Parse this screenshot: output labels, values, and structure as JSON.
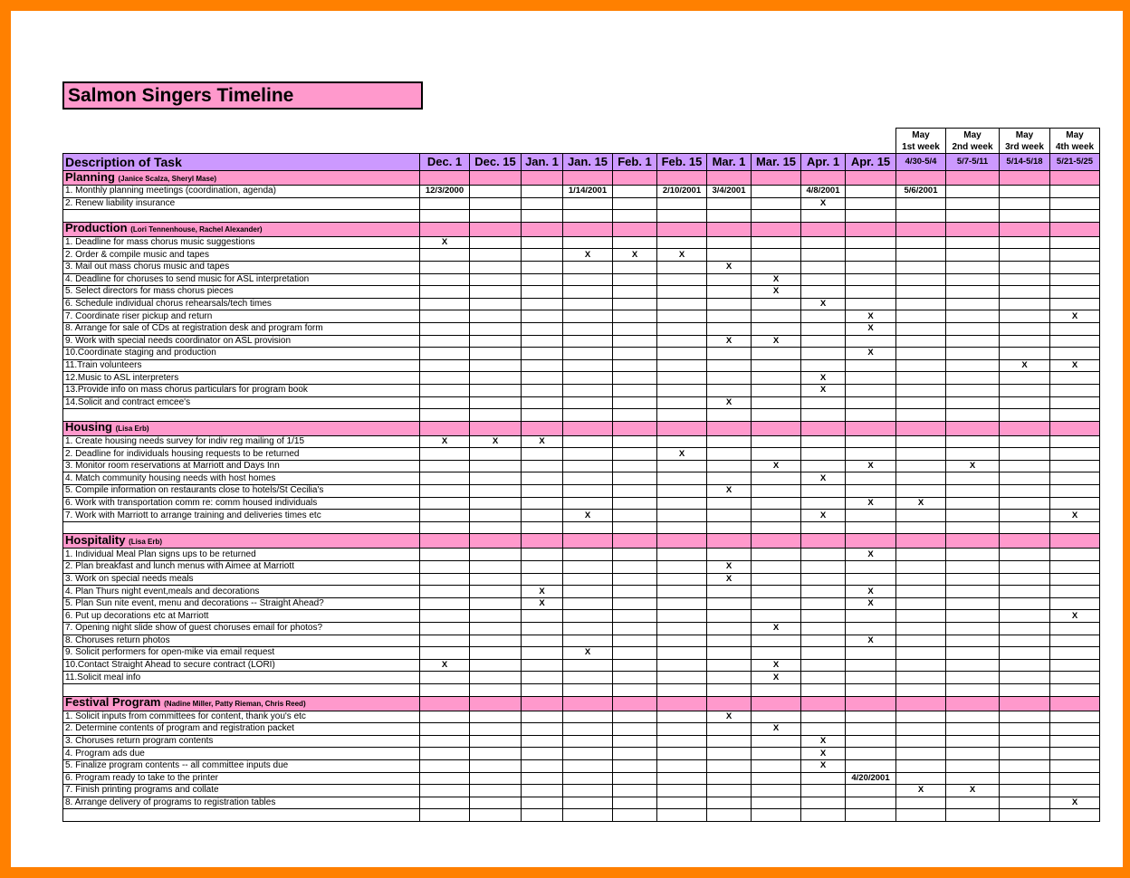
{
  "title": "Salmon Singers Timeline",
  "description_header": "Description of Task",
  "columns": [
    "Dec. 1",
    "Dec. 15",
    "Jan. 1",
    "Jan. 15",
    "Feb. 1",
    "Feb. 15",
    "Mar. 1",
    "Mar. 15",
    "Apr. 1",
    "Apr. 15",
    "4/30-5/4",
    "5/7-5/11",
    "5/14-5/18",
    "5/21-5/25"
  ],
  "may_headers": [
    [
      "May",
      "1st week"
    ],
    [
      "May",
      "2nd week"
    ],
    [
      "May",
      "3rd week"
    ],
    [
      "May",
      "4th week"
    ]
  ],
  "sections": [
    {
      "title": "Planning",
      "people": "(Janice Scalza, Sheryl Mase)",
      "tasks": [
        {
          "label": "1. Monthly planning meetings (coordination, agenda)",
          "cells": [
            "12/3/2000",
            null,
            null,
            "1/14/2001",
            null,
            "2/10/2001",
            "3/4/2001",
            null,
            "4/8/2001",
            null,
            "5/6/2001",
            null,
            null,
            null
          ]
        },
        {
          "label": "2. Renew liability insurance",
          "cells": [
            null,
            null,
            null,
            null,
            null,
            null,
            null,
            null,
            "X",
            null,
            null,
            null,
            null,
            null
          ]
        }
      ]
    },
    {
      "title": "Production",
      "people": "(Lori Tennenhouse, Rachel Alexander)",
      "tasks": [
        {
          "label": "1. Deadline for mass chorus music suggestions",
          "cells": [
            "X",
            null,
            null,
            null,
            null,
            null,
            null,
            null,
            null,
            null,
            null,
            null,
            null,
            null
          ]
        },
        {
          "label": "2. Order & compile music and tapes",
          "cells": [
            null,
            null,
            null,
            "X",
            "X",
            "X",
            null,
            null,
            null,
            null,
            null,
            null,
            null,
            null
          ]
        },
        {
          "label": "3. Mail out mass chorus music and tapes",
          "cells": [
            null,
            null,
            null,
            null,
            null,
            null,
            "X",
            null,
            null,
            null,
            null,
            null,
            null,
            null
          ]
        },
        {
          "label": "4. Deadline for choruses to send music for ASL interpretation",
          "cells": [
            null,
            null,
            null,
            null,
            null,
            null,
            null,
            "X",
            null,
            null,
            null,
            null,
            null,
            null
          ]
        },
        {
          "label": "5. Select directors for mass chorus pieces",
          "cells": [
            null,
            null,
            null,
            null,
            null,
            null,
            null,
            "X",
            null,
            null,
            null,
            null,
            null,
            null
          ]
        },
        {
          "label": "6. Schedule individual chorus rehearsals/tech times",
          "cells": [
            null,
            null,
            null,
            null,
            null,
            null,
            null,
            null,
            "X",
            null,
            null,
            null,
            null,
            null
          ]
        },
        {
          "label": "7. Coordinate riser pickup and return",
          "cells": [
            null,
            null,
            null,
            null,
            null,
            null,
            null,
            null,
            null,
            "X",
            null,
            null,
            null,
            "X"
          ]
        },
        {
          "label": "8. Arrange for sale of CDs at registration desk and program form",
          "cells": [
            null,
            null,
            null,
            null,
            null,
            null,
            null,
            null,
            null,
            "X",
            null,
            null,
            null,
            null
          ]
        },
        {
          "label": "9. Work with special needs coordinator on ASL provision",
          "cells": [
            null,
            null,
            null,
            null,
            null,
            null,
            "X",
            "X",
            null,
            null,
            null,
            null,
            null,
            null
          ]
        },
        {
          "label": "10.Coordinate staging and production",
          "cells": [
            null,
            null,
            null,
            null,
            null,
            null,
            null,
            null,
            null,
            "X",
            null,
            null,
            null,
            null
          ]
        },
        {
          "label": "11.Train volunteers",
          "cells": [
            null,
            null,
            null,
            null,
            null,
            null,
            null,
            null,
            null,
            null,
            null,
            null,
            "X",
            "X"
          ]
        },
        {
          "label": "12.Music to ASL interpreters",
          "cells": [
            null,
            null,
            null,
            null,
            null,
            null,
            null,
            null,
            "X",
            null,
            null,
            null,
            null,
            null
          ]
        },
        {
          "label": "13.Provide info on mass chorus particulars for program book",
          "cells": [
            null,
            null,
            null,
            null,
            null,
            null,
            null,
            null,
            "X",
            null,
            null,
            null,
            null,
            null
          ]
        },
        {
          "label": "14.Solicit and contract emcee's",
          "cells": [
            null,
            null,
            null,
            null,
            null,
            null,
            "X",
            null,
            null,
            null,
            null,
            null,
            null,
            null
          ]
        }
      ]
    },
    {
      "title": "Housing",
      "people": "(Lisa Erb)",
      "tasks": [
        {
          "label": "1. Create housing needs survey for indiv reg mailing of 1/15",
          "cells": [
            "X",
            "X",
            "X",
            null,
            null,
            null,
            null,
            null,
            null,
            null,
            null,
            null,
            null,
            null
          ]
        },
        {
          "label": "2. Deadline for individuals housing requests to be returned",
          "cells": [
            null,
            null,
            null,
            null,
            null,
            "X",
            null,
            null,
            null,
            null,
            null,
            null,
            null,
            null
          ]
        },
        {
          "label": "3. Monitor room reservations at Marriott and Days Inn",
          "cells": [
            null,
            null,
            null,
            null,
            null,
            null,
            null,
            "X",
            null,
            "X",
            null,
            "X",
            null,
            null
          ]
        },
        {
          "label": "4. Match community housing needs with host homes",
          "cells": [
            null,
            null,
            null,
            null,
            null,
            null,
            null,
            null,
            "X",
            null,
            null,
            null,
            null,
            null
          ]
        },
        {
          "label": "5. Compile information on restaurants close to hotels/St Cecilia's",
          "cells": [
            null,
            null,
            null,
            null,
            null,
            null,
            "X",
            null,
            null,
            null,
            null,
            null,
            null,
            null
          ]
        },
        {
          "label": "6. Work with transportation comm re: comm housed individuals",
          "cells": [
            null,
            null,
            null,
            null,
            null,
            null,
            null,
            null,
            null,
            "X",
            "X",
            null,
            null,
            null
          ]
        },
        {
          "label": "7. Work with Marriott to arrange training and deliveries times etc",
          "cells": [
            null,
            null,
            null,
            "X",
            null,
            null,
            null,
            null,
            "X",
            null,
            null,
            null,
            null,
            "X"
          ]
        }
      ]
    },
    {
      "title": "Hospitality",
      "people": "(Lisa Erb)",
      "tasks": [
        {
          "label": "1. Individual Meal Plan signs ups to be returned",
          "cells": [
            null,
            null,
            null,
            null,
            null,
            null,
            null,
            null,
            null,
            "X",
            null,
            null,
            null,
            null
          ]
        },
        {
          "label": "2. Plan breakfast and lunch menus with Aimee at Marriott",
          "cells": [
            null,
            null,
            null,
            null,
            null,
            null,
            "X",
            null,
            null,
            null,
            null,
            null,
            null,
            null
          ]
        },
        {
          "label": "3. Work on special needs meals",
          "cells": [
            null,
            null,
            null,
            null,
            null,
            null,
            "X",
            null,
            null,
            null,
            null,
            null,
            null,
            null
          ]
        },
        {
          "label": "4. Plan Thurs night event,meals and decorations",
          "cells": [
            null,
            null,
            "X",
            null,
            null,
            null,
            null,
            null,
            null,
            "X",
            null,
            null,
            null,
            null
          ]
        },
        {
          "label": "5. Plan Sun nite event, menu and decorations -- Straight Ahead?",
          "cells": [
            null,
            null,
            "X",
            null,
            null,
            null,
            null,
            null,
            null,
            "X",
            null,
            null,
            null,
            null
          ]
        },
        {
          "label": "6. Put up decorations etc at Marriott",
          "cells": [
            null,
            null,
            null,
            null,
            null,
            null,
            null,
            null,
            null,
            null,
            null,
            null,
            null,
            "X"
          ]
        },
        {
          "label": "7. Opening night slide show of guest choruses email for photos?",
          "cells": [
            null,
            null,
            null,
            null,
            null,
            null,
            null,
            "X",
            null,
            null,
            null,
            null,
            null,
            null
          ]
        },
        {
          "label": "8. Choruses return photos",
          "cells": [
            null,
            null,
            null,
            null,
            null,
            null,
            null,
            null,
            null,
            "X",
            null,
            null,
            null,
            null
          ]
        },
        {
          "label": "9. Solicit performers for open-mike via email request",
          "cells": [
            null,
            null,
            null,
            "X",
            null,
            null,
            null,
            null,
            null,
            null,
            null,
            null,
            null,
            null
          ]
        },
        {
          "label": "10.Contact Straight Ahead to secure contract (LORI)",
          "cells": [
            "X",
            null,
            null,
            null,
            null,
            null,
            null,
            "X",
            null,
            null,
            null,
            null,
            null,
            null
          ]
        },
        {
          "label": "11.Solicit meal info",
          "cells": [
            null,
            null,
            null,
            null,
            null,
            null,
            null,
            "X",
            null,
            null,
            null,
            null,
            null,
            null
          ]
        }
      ]
    },
    {
      "title": "Festival Program",
      "people": "(Nadine Miller, Patty Rieman, Chris Reed)",
      "tasks": [
        {
          "label": "1. Solicit inputs from committees for content, thank you's etc",
          "cells": [
            null,
            null,
            null,
            null,
            null,
            null,
            "X",
            null,
            null,
            null,
            null,
            null,
            null,
            null
          ]
        },
        {
          "label": "2. Determine contents of program and registration packet",
          "cells": [
            null,
            null,
            null,
            null,
            null,
            null,
            null,
            "X",
            null,
            null,
            null,
            null,
            null,
            null
          ]
        },
        {
          "label": "3. Choruses return program contents",
          "cells": [
            null,
            null,
            null,
            null,
            null,
            null,
            null,
            null,
            "X",
            null,
            null,
            null,
            null,
            null
          ]
        },
        {
          "label": "4. Program ads due",
          "cells": [
            null,
            null,
            null,
            null,
            null,
            null,
            null,
            null,
            "X",
            null,
            null,
            null,
            null,
            null
          ]
        },
        {
          "label": "5. Finalize program contents -- all committee inputs due",
          "cells": [
            null,
            null,
            null,
            null,
            null,
            null,
            null,
            null,
            "X",
            null,
            null,
            null,
            null,
            null
          ]
        },
        {
          "label": "6. Program ready to take to the printer",
          "cells": [
            null,
            null,
            null,
            null,
            null,
            null,
            null,
            null,
            null,
            "4/20/2001",
            null,
            null,
            null,
            null
          ]
        },
        {
          "label": "7. Finish printing programs and collate",
          "cells": [
            null,
            null,
            null,
            null,
            null,
            null,
            null,
            null,
            null,
            null,
            "X",
            "X",
            null,
            null
          ]
        },
        {
          "label": "8. Arrange delivery of programs to registration tables",
          "cells": [
            null,
            null,
            null,
            null,
            null,
            null,
            null,
            null,
            null,
            null,
            null,
            null,
            null,
            "X"
          ]
        }
      ]
    }
  ]
}
